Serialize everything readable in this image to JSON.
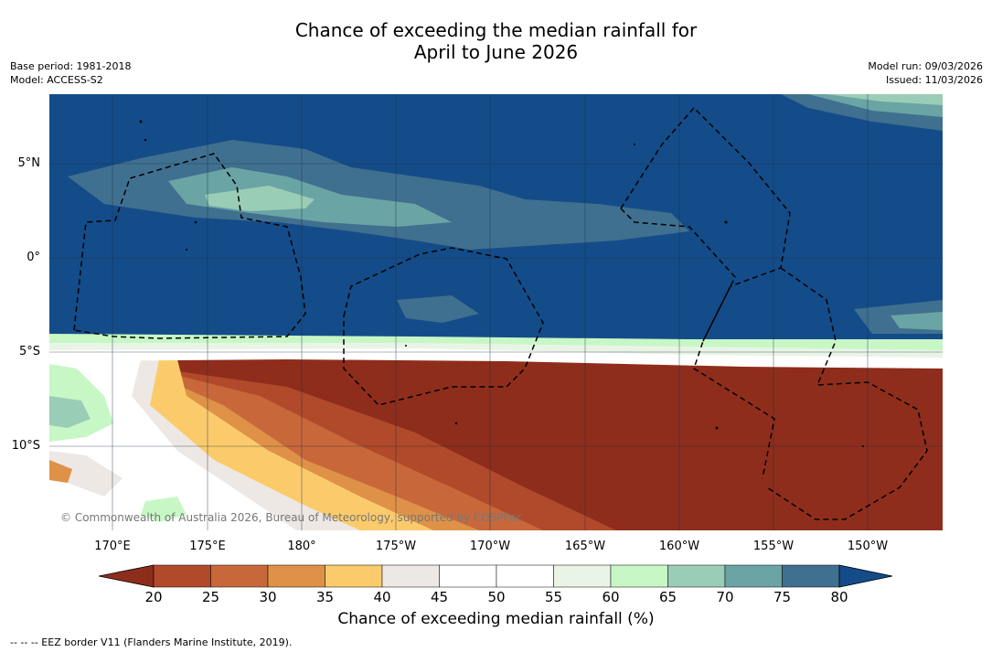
{
  "title_line1": "Chance of exceeding the median rainfall for",
  "title_line2": "April to June 2026",
  "base_period": "Base period: 1981-2018",
  "model": "Model: ACCESS-S2",
  "model_run": "Model run: 09/03/2026",
  "issued": "Issued: 11/03/2026",
  "lat_labels": [
    "5°N",
    "0°",
    "5°S",
    "10°S"
  ],
  "lon_labels": [
    "170°E",
    "175°E",
    "180°",
    "175°W",
    "170°W",
    "165°W",
    "160°W",
    "155°W",
    "150°W"
  ],
  "colorbar": {
    "ticks": [
      "20",
      "25",
      "30",
      "35",
      "40",
      "45",
      "50",
      "55",
      "60",
      "65",
      "70",
      "75",
      "80"
    ],
    "colors": [
      "#8f2d1c",
      "#b04a2a",
      "#c8683a",
      "#de9147",
      "#fbcb6b",
      "#ede8e3",
      "#ffffff",
      "#ffffff",
      "#e9f4e6",
      "#c8f7c6",
      "#9acdb5",
      "#6aa4a4",
      "#40708f",
      "#144c89"
    ],
    "label": "Chance of exceeding median rainfall (%)"
  },
  "copyright": "© Commonwealth of Australia 2026, Bureau of Meteorology, supported by COSPPac",
  "footnote": "--  --  -- EEZ border V11 (Flanders Marine Institute, 2019)."
}
